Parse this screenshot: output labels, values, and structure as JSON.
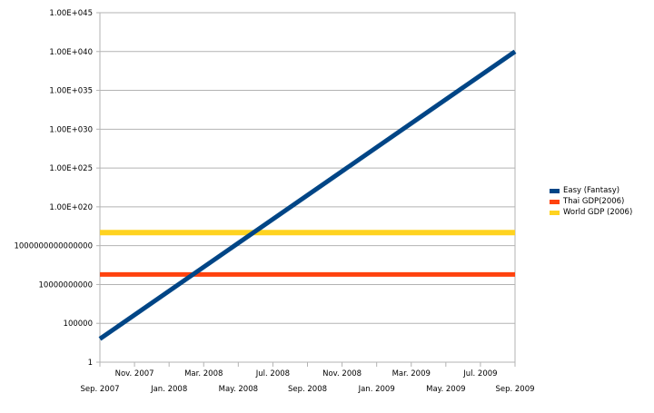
{
  "chart_data": {
    "type": "line",
    "title": "",
    "xlabel": "",
    "ylabel": "",
    "yscale": "log",
    "ylim": [
      1,
      1e+45
    ],
    "xlim": [
      "2007-09",
      "2009-09"
    ],
    "y_tick_labels": [
      "1",
      "100000",
      "10000000000",
      "1000000000000000",
      "1.00E+020",
      "1.00E+025",
      "1.00E+030",
      "1.00E+035",
      "1.00E+040",
      "1.00E+045"
    ],
    "x_tick_labels": [
      "Sep. 2007",
      "Nov. 2007",
      "Jan. 2008",
      "Mar. 2008",
      "May. 2008",
      "Jul. 2008",
      "Sep. 2008",
      "Nov. 2008",
      "Jan. 2009",
      "Mar. 2009",
      "May. 2009",
      "Jul. 2009",
      "Sep. 2009"
    ],
    "grid": true,
    "legend_position": "right",
    "series": [
      {
        "name": "Easy (Fantasy)",
        "color": "#004586",
        "x": [
          "2007-09",
          "2009-09"
        ],
        "y": [
          1000.0,
          1e+40
        ]
      },
      {
        "name": "Thai GDP(2006)",
        "color": "#ff420e",
        "x": [
          "2007-09",
          "2009-09"
        ],
        "y": [
          200000000000.0,
          200000000000.0
        ]
      },
      {
        "name": "World GDP (2006)",
        "color": "#ffd320",
        "x": [
          "2007-09",
          "2009-09"
        ],
        "y": [
          4.8e+16,
          4.8e+16
        ]
      }
    ]
  }
}
